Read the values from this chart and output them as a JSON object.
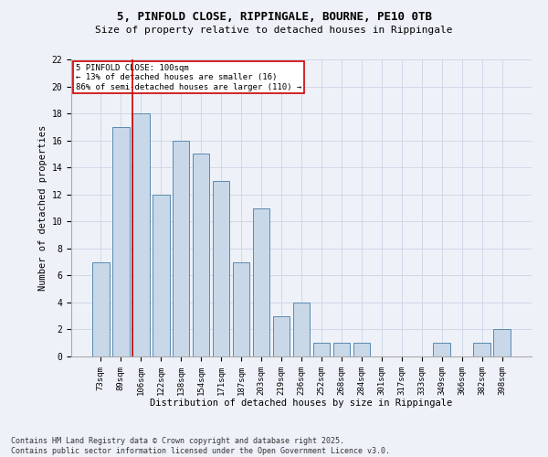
{
  "title_line1": "5, PINFOLD CLOSE, RIPPINGALE, BOURNE, PE10 0TB",
  "title_line2": "Size of property relative to detached houses in Rippingale",
  "xlabel": "Distribution of detached houses by size in Rippingale",
  "ylabel": "Number of detached properties",
  "categories": [
    "73sqm",
    "89sqm",
    "106sqm",
    "122sqm",
    "138sqm",
    "154sqm",
    "171sqm",
    "187sqm",
    "203sqm",
    "219sqm",
    "236sqm",
    "252sqm",
    "268sqm",
    "284sqm",
    "301sqm",
    "317sqm",
    "333sqm",
    "349sqm",
    "366sqm",
    "382sqm",
    "398sqm"
  ],
  "values": [
    7,
    17,
    18,
    12,
    16,
    15,
    13,
    7,
    11,
    3,
    4,
    1,
    1,
    1,
    0,
    0,
    0,
    1,
    0,
    1,
    2
  ],
  "bar_color": "#c8d8e8",
  "bar_edge_color": "#5a8ab0",
  "vline_x_index": 2,
  "vline_color": "#cc0000",
  "annotation_text": "5 PINFOLD CLOSE: 100sqm\n← 13% of detached houses are smaller (16)\n86% of semi-detached houses are larger (110) →",
  "annotation_box_color": "#ffffff",
  "annotation_box_edge": "#cc0000",
  "ylim": [
    0,
    22
  ],
  "yticks": [
    0,
    2,
    4,
    6,
    8,
    10,
    12,
    14,
    16,
    18,
    20,
    22
  ],
  "grid_color": "#d0d8e8",
  "background_color": "#eef2f8",
  "footer_line1": "Contains HM Land Registry data © Crown copyright and database right 2025.",
  "footer_line2": "Contains public sector information licensed under the Open Government Licence v3.0."
}
